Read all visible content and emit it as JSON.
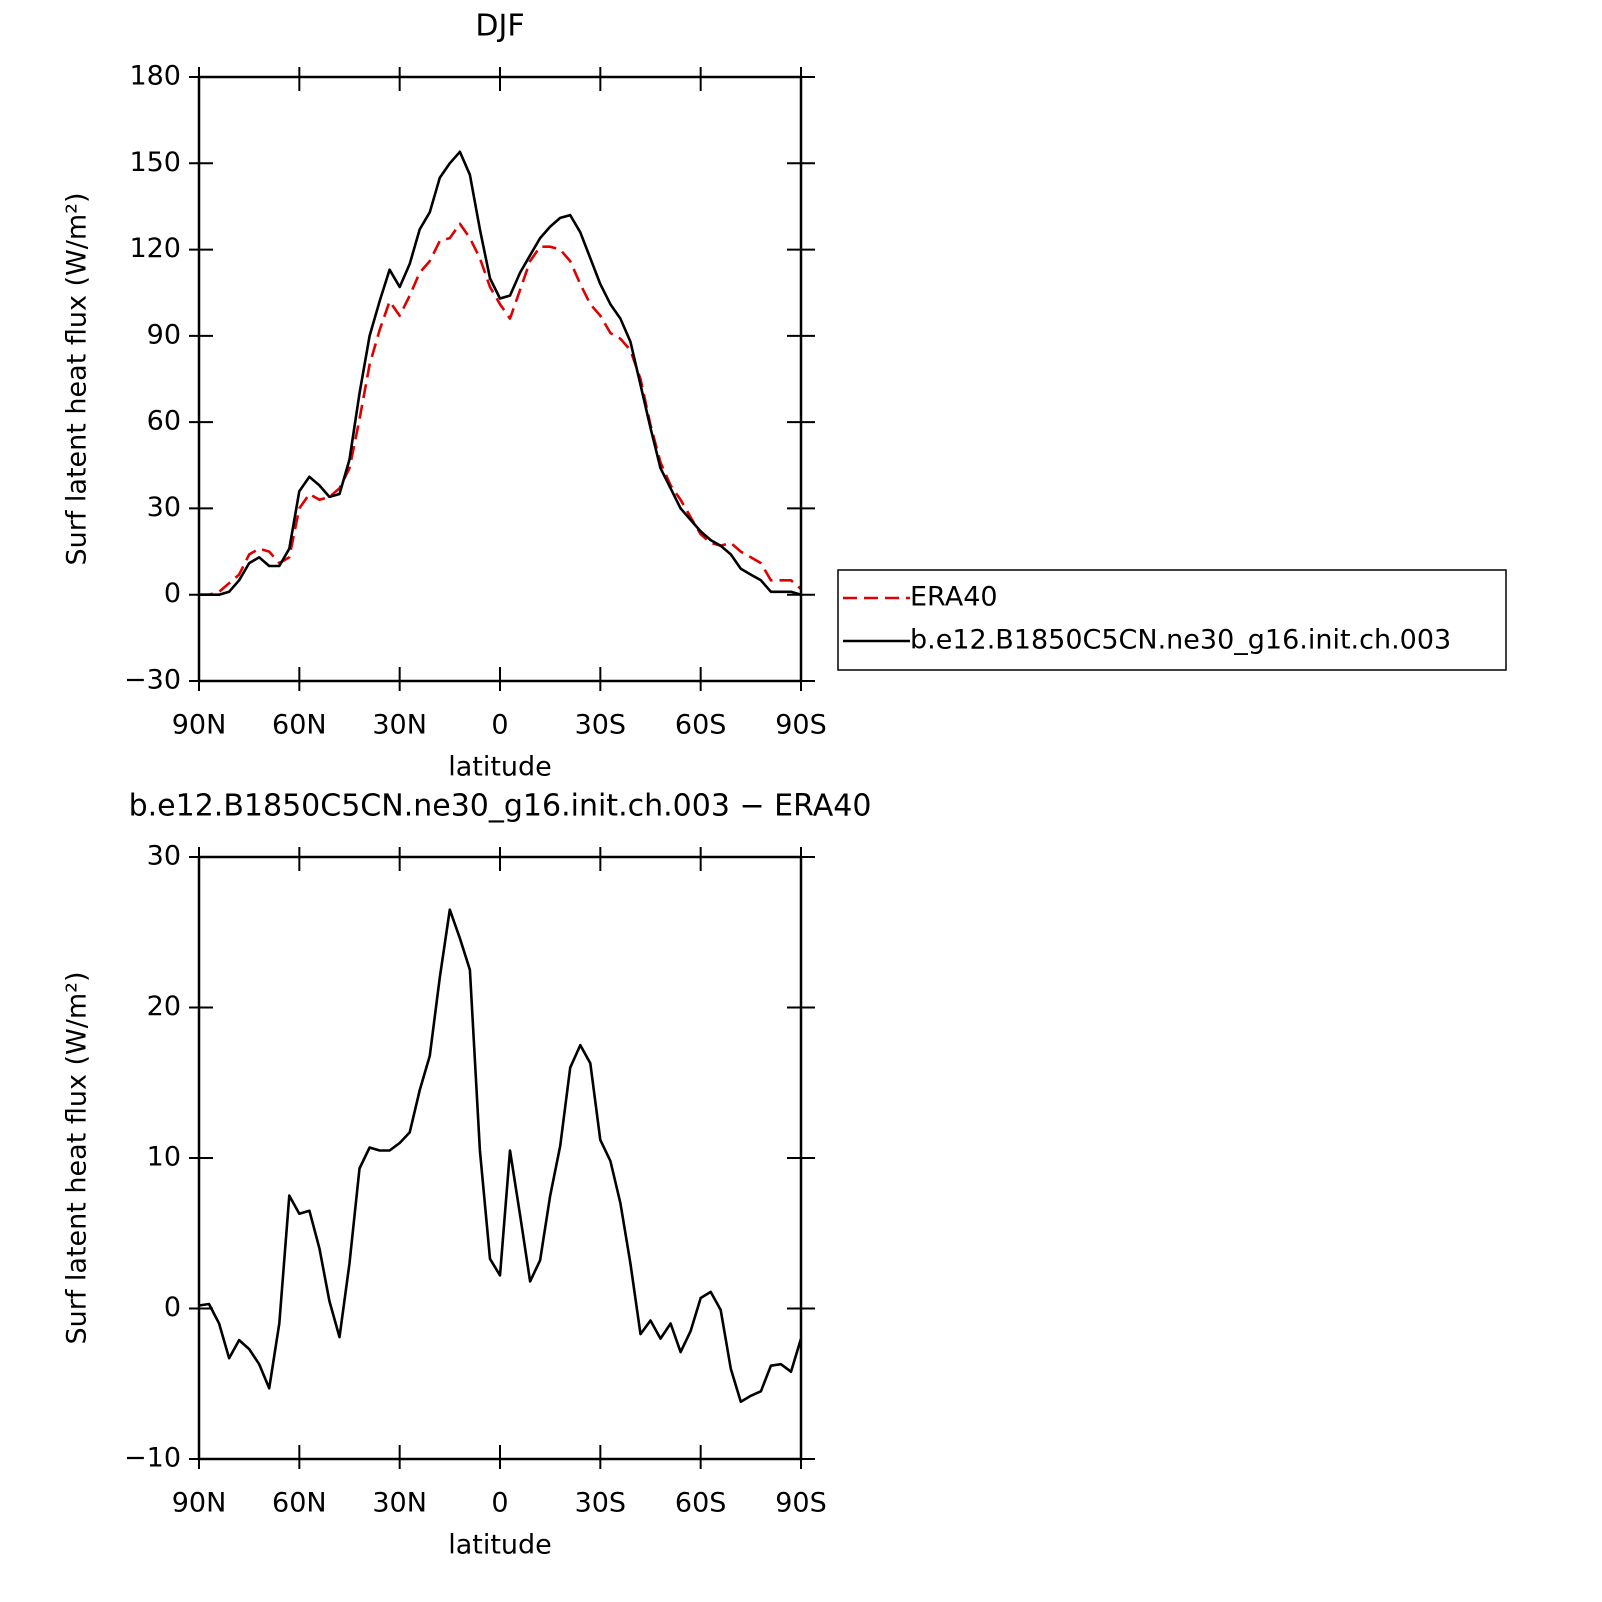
{
  "chart_data": [
    {
      "type": "line",
      "title": "DJF",
      "ylabel": "Surf latent heat flux (W/m²)",
      "xlabel": "latitude",
      "x": [
        90,
        87,
        84,
        81,
        78,
        75,
        72,
        69,
        66,
        63,
        60,
        57,
        54,
        51,
        48,
        45,
        42,
        39,
        36,
        33,
        30,
        27,
        24,
        21,
        18,
        15,
        12,
        9,
        6,
        3,
        0,
        -3,
        -6,
        -9,
        -12,
        -15,
        -18,
        -21,
        -24,
        -27,
        -30,
        -33,
        -36,
        -39,
        -42,
        -45,
        -48,
        -51,
        -54,
        -57,
        -60,
        -63,
        -66,
        -69,
        -72,
        -75,
        -78,
        -81,
        -84,
        -87,
        -90
      ],
      "xlim": [
        90,
        -90
      ],
      "xticks": [
        {
          "value": 90,
          "label": "90N"
        },
        {
          "value": 60,
          "label": "60N"
        },
        {
          "value": 30,
          "label": "30N"
        },
        0,
        {
          "value": -30,
          "label": "30S"
        },
        {
          "value": -60,
          "label": "60S"
        },
        {
          "value": -90,
          "label": "90S"
        }
      ],
      "ylim": [
        -30,
        180
      ],
      "yticks": [
        {
          "value": -30,
          "label": "−30"
        },
        0,
        30,
        60,
        90,
        120,
        150,
        180
      ],
      "legend": "outside-right",
      "series": [
        {
          "name": "ERA40",
          "color": "#e00000",
          "dash": true,
          "values": [
            0,
            0,
            1,
            4,
            7,
            14,
            16,
            15,
            11,
            13,
            30,
            35,
            33,
            34,
            37,
            44,
            61,
            80,
            92,
            102,
            97,
            104,
            112,
            116,
            123,
            124,
            129,
            124,
            117,
            107,
            101,
            96,
            106,
            116,
            121,
            121,
            120,
            116,
            108,
            101,
            97,
            91,
            89,
            85,
            75,
            59,
            46,
            38,
            33,
            27,
            21,
            18,
            17,
            18,
            15,
            13,
            11,
            5,
            5,
            5,
            2
          ]
        },
        {
          "name": "b.e12.B1850C5CN.ne30_g16.init.ch.003",
          "color": "#000000",
          "dash": false,
          "values": [
            0,
            0,
            0,
            1,
            5,
            11,
            13,
            10,
            10,
            16,
            36,
            41,
            38,
            34,
            35,
            47,
            70,
            90,
            102,
            113,
            107,
            115,
            127,
            133,
            145,
            150,
            154,
            146,
            127,
            110,
            103,
            104,
            112,
            118,
            124,
            128,
            131,
            132,
            126,
            117,
            108,
            101,
            96,
            88,
            73,
            58,
            44,
            37,
            30,
            26,
            22,
            19,
            17,
            14,
            9,
            7,
            5,
            1,
            1,
            1,
            0
          ]
        }
      ]
    },
    {
      "type": "line",
      "title": "b.e12.B1850C5CN.ne30_g16.init.ch.003 − ERA40",
      "ylabel": "Surf latent heat flux (W/m²)",
      "xlabel": "latitude",
      "x": [
        90,
        87,
        84,
        81,
        78,
        75,
        72,
        69,
        66,
        63,
        60,
        57,
        54,
        51,
        48,
        45,
        42,
        39,
        36,
        33,
        30,
        27,
        24,
        21,
        18,
        15,
        12,
        9,
        6,
        3,
        0,
        -3,
        -6,
        -9,
        -12,
        -15,
        -18,
        -21,
        -24,
        -27,
        -30,
        -33,
        -36,
        -39,
        -42,
        -45,
        -48,
        -51,
        -54,
        -57,
        -60,
        -63,
        -66,
        -69,
        -72,
        -75,
        -78,
        -81,
        -84,
        -87,
        -90
      ],
      "xlim": [
        90,
        -90
      ],
      "xticks": [
        {
          "value": 90,
          "label": "90N"
        },
        {
          "value": 60,
          "label": "60N"
        },
        {
          "value": 30,
          "label": "30N"
        },
        0,
        {
          "value": -30,
          "label": "30S"
        },
        {
          "value": -60,
          "label": "60S"
        },
        {
          "value": -90,
          "label": "90S"
        }
      ],
      "ylim": [
        -10,
        30
      ],
      "yticks": [
        {
          "value": -10,
          "label": "−10"
        },
        0,
        10,
        20,
        30
      ],
      "series": [
        {
          "color": "#000000",
          "dash": false,
          "values": [
            0.2,
            0.3,
            -1.0,
            -3.3,
            -2.1,
            -2.7,
            -3.7,
            -5.3,
            -1.0,
            7.5,
            6.3,
            6.5,
            4.0,
            0.5,
            -1.9,
            3.0,
            9.3,
            10.7,
            10.5,
            10.5,
            11.0,
            11.7,
            14.5,
            16.8,
            22.0,
            26.5,
            24.6,
            22.5,
            10.5,
            3.3,
            2.2,
            10.5,
            6.2,
            1.8,
            3.2,
            7.5,
            10.8,
            16.0,
            17.5,
            16.3,
            11.2,
            9.8,
            7.0,
            3.0,
            -1.7,
            -0.8,
            -2.0,
            -1.0,
            -2.9,
            -1.5,
            0.7,
            1.1,
            -0.1,
            -4.0,
            -6.2,
            -5.8,
            -5.5,
            -3.8,
            -3.7,
            -4.2,
            -2.0
          ]
        }
      ]
    }
  ]
}
